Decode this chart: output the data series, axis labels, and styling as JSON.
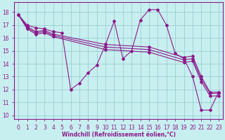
{
  "xlabel": "Windchill (Refroidissement éolien,°C)",
  "bg_color": "#c8eff0",
  "line_color": "#8b1a8b",
  "grid_color": "#90c8cc",
  "xlim_min": -0.5,
  "xlim_max": 23.5,
  "ylim_min": 9.7,
  "ylim_max": 18.8,
  "yticks": [
    10,
    11,
    12,
    13,
    14,
    15,
    16,
    17,
    18
  ],
  "xticks": [
    0,
    1,
    2,
    3,
    4,
    5,
    6,
    7,
    8,
    9,
    10,
    11,
    12,
    13,
    14,
    15,
    16,
    17,
    18,
    19,
    20,
    21,
    22,
    23
  ],
  "tick_fontsize": 5.5,
  "xlabel_fontsize": 5.5,
  "lines": [
    {
      "x": [
        0,
        1,
        2,
        3,
        4,
        5,
        6,
        7,
        8,
        9,
        10,
        11,
        12,
        13,
        14,
        15,
        16,
        17,
        18,
        19,
        20,
        21,
        22,
        23
      ],
      "y": [
        17.8,
        17.0,
        16.8,
        16.7,
        16.5,
        16.4,
        12.0,
        12.5,
        13.3,
        13.9,
        15.5,
        17.3,
        14.4,
        15.0,
        17.4,
        18.2,
        18.2,
        17.0,
        14.8,
        14.4,
        13.0,
        10.4,
        10.4,
        11.8
      ]
    },
    {
      "x": [
        0,
        1,
        2,
        3,
        4,
        10,
        15,
        19,
        20,
        21,
        22,
        23
      ],
      "y": [
        17.8,
        16.9,
        16.5,
        16.6,
        16.3,
        15.5,
        15.3,
        14.5,
        14.6,
        13.0,
        11.8,
        11.8
      ]
    },
    {
      "x": [
        0,
        1,
        2,
        3,
        4,
        10,
        15,
        19,
        20,
        21,
        22,
        23
      ],
      "y": [
        17.8,
        16.8,
        16.4,
        16.5,
        16.2,
        15.3,
        15.1,
        14.3,
        14.4,
        12.8,
        11.7,
        11.7
      ]
    },
    {
      "x": [
        0,
        1,
        2,
        3,
        4,
        10,
        15,
        19,
        20,
        21,
        22,
        23
      ],
      "y": [
        17.8,
        16.7,
        16.3,
        16.4,
        16.1,
        15.1,
        14.9,
        14.1,
        14.2,
        12.6,
        11.5,
        11.5
      ]
    }
  ]
}
